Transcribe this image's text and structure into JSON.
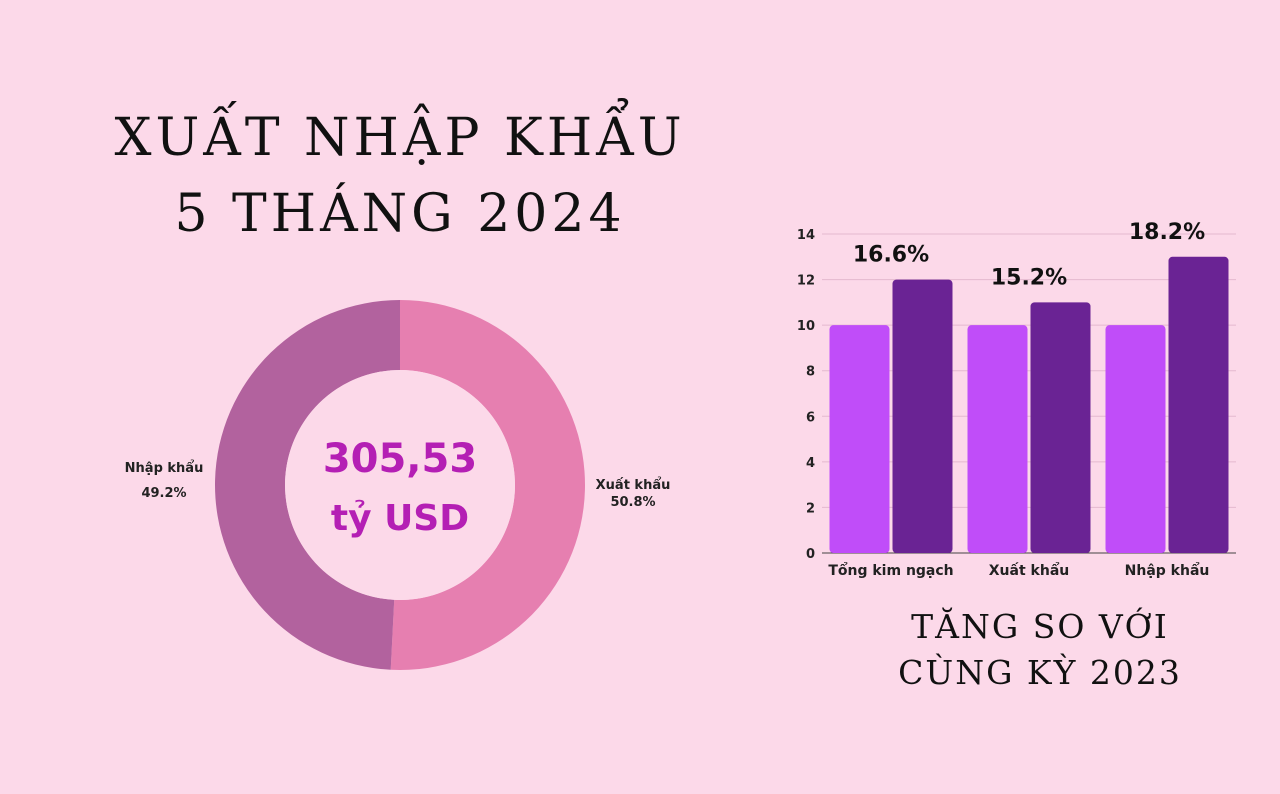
{
  "title": {
    "line1": "XUẤT NHẬP KHẨU",
    "line2": "5 THÁNG 2024"
  },
  "donut": {
    "center_value": "305,53",
    "center_unit": "tỷ USD",
    "colors": {
      "export": "#e67fb0",
      "import": "#b2629e",
      "center_text": "#b41fb4"
    }
  },
  "bar": {
    "subtitle": {
      "line1": "TĂNG SO VỚI",
      "line2": "CÙNG KỲ 2023"
    },
    "colors": {
      "light": "#c04df9",
      "dark": "#6a2394"
    }
  },
  "chart_data": [
    {
      "type": "pie",
      "variant": "donut",
      "slices": [
        {
          "label": "Xuất khẩu",
          "percent_label": "50.8%",
          "value": 50.8
        },
        {
          "label": "Nhập khẩu",
          "percent_label": "49.2%",
          "value": 49.2
        }
      ]
    },
    {
      "type": "bar",
      "categories": [
        "Tổng kim ngạch",
        "Xuất khẩu",
        "Nhập khẩu"
      ],
      "series": [
        {
          "values": [
            10,
            10,
            10
          ]
        },
        {
          "values": [
            12,
            11,
            13
          ]
        }
      ],
      "data_labels": [
        "16.6%",
        "15.2%",
        "18.2%"
      ],
      "ylim": [
        0,
        14
      ],
      "yticks": [
        0,
        2,
        4,
        6,
        8,
        10,
        12,
        14
      ],
      "grid": true
    }
  ]
}
